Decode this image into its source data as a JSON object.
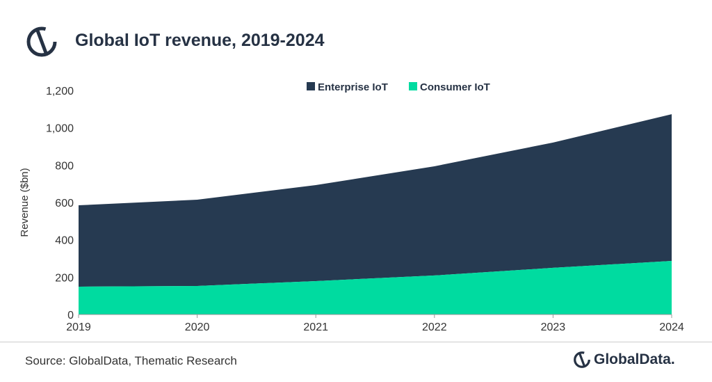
{
  "title": "Global IoT revenue, 2019-2024",
  "source": "Source: GlobalData, Thematic Research",
  "brand": "GlobalData.",
  "colors": {
    "enterprise": "#263a51",
    "consumer": "#00dba0",
    "title": "#263244"
  },
  "chart_data": {
    "type": "area",
    "stacked": true,
    "title": "Global IoT revenue, 2019-2024",
    "xlabel": "",
    "ylabel": "Revenue ($bn)",
    "x": [
      "2019",
      "2020",
      "2021",
      "2022",
      "2023",
      "2024"
    ],
    "ylim": [
      0,
      1200
    ],
    "yticks": [
      "0",
      "200",
      "400",
      "600",
      "800",
      "1,000",
      "1,200"
    ],
    "ytick_values": [
      0,
      200,
      400,
      600,
      800,
      1000,
      1200
    ],
    "legend_position": "top-center",
    "series": [
      {
        "name": "Consumer IoT",
        "values": [
          149,
          153,
          179,
          209,
          250,
          287
        ]
      },
      {
        "name": "Enterprise IoT",
        "values": [
          436,
          462,
          514,
          585,
          671,
          786
        ]
      }
    ],
    "legend": [
      "Enterprise IoT",
      "Consumer IoT"
    ]
  }
}
